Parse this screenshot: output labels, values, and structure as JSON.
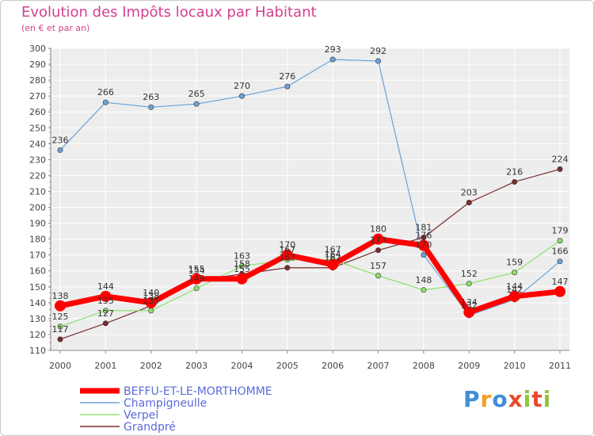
{
  "chart_data": {
    "type": "line",
    "title": "Evolution des Impôts locaux par Habitant",
    "subtitle": "(en € et par an)",
    "xlabel": "",
    "ylabel": "",
    "x": [
      "2000",
      "2001",
      "2002",
      "2003",
      "2004",
      "2005",
      "2006",
      "2007",
      "2008",
      "2009",
      "2010",
      "2011"
    ],
    "ylim": [
      110,
      300
    ],
    "yticks": [
      "110",
      "120",
      "130",
      "140",
      "150",
      "160",
      "170",
      "180",
      "190",
      "200",
      "210",
      "220",
      "230",
      "240",
      "250",
      "260",
      "270",
      "280",
      "290",
      "300"
    ],
    "grid": true,
    "legend_position": "bottom-left",
    "series": [
      {
        "name": "BEFFU-ET-LE-MORTHOMME",
        "color": "#ff0000",
        "values": [
          138,
          144,
          140,
          155,
          155,
          170,
          164,
          180,
          176,
          134,
          144,
          147
        ],
        "labels": [
          "138",
          "144",
          "140",
          "155",
          "155",
          "170",
          "164",
          "180",
          "176",
          "134",
          "144",
          "147"
        ]
      },
      {
        "name": "Champigneulle",
        "color": "#6aa3d9",
        "values": [
          236,
          266,
          263,
          265,
          270,
          276,
          293,
          292,
          170,
          132,
          142,
          166
        ],
        "labels": [
          "236",
          "266",
          "263",
          "265",
          "270",
          "276",
          "293",
          "292",
          "170",
          "132",
          "142",
          "166"
        ]
      },
      {
        "name": "Verpel",
        "color": "#8ee06a",
        "values": [
          125,
          135,
          135,
          149,
          163,
          167,
          167,
          157,
          148,
          152,
          159,
          179
        ],
        "labels": [
          "125",
          "135",
          "135",
          "149",
          "163",
          "167",
          "167",
          "157",
          "148",
          "152",
          "159",
          "179"
        ]
      },
      {
        "name": "Grandpré",
        "color": "#7a2d2d",
        "values": [
          117,
          127,
          138,
          154,
          158,
          162,
          162,
          173,
          181,
          203,
          216,
          224
        ],
        "labels": [
          "117",
          "127",
          "138",
          "154",
          "158",
          "162",
          "162",
          "173",
          "181",
          "203",
          "216",
          "224"
        ]
      }
    ]
  },
  "logo": {
    "text_p": "P",
    "text_r": "r",
    "text_o": "o",
    "text_x": "x",
    "text_i1": "i",
    "text_t": "t",
    "text_i2": "i"
  }
}
